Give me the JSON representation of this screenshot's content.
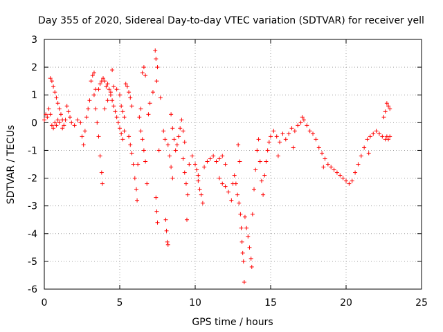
{
  "chart_data": {
    "type": "scatter",
    "title": "Day 355 of 2020, Sidereal Day-to-day VTEC variation (SDTVAR) for receiver yell",
    "xlabel": "GPS time / hours",
    "ylabel": "SDTVAR / TECUs",
    "xlim": [
      0,
      25
    ],
    "ylim": [
      -6,
      3
    ],
    "xticks": [
      0,
      5,
      10,
      15,
      20,
      25
    ],
    "yticks": [
      -6,
      -5,
      -4,
      -3,
      -2,
      -1,
      0,
      1,
      2,
      3
    ],
    "grid": true,
    "marker": "+",
    "series": [
      {
        "name": "SDTVAR",
        "color": "#ff0000",
        "points": [
          [
            0.0,
            0.1
          ],
          [
            0.1,
            0.3
          ],
          [
            0.2,
            0.2
          ],
          [
            0.3,
            0.5
          ],
          [
            0.4,
            0.3
          ],
          [
            0.5,
            -0.1
          ],
          [
            0.6,
            -0.2
          ],
          [
            0.7,
            0.0
          ],
          [
            0.8,
            -0.1
          ],
          [
            0.9,
            0.1
          ],
          [
            0.4,
            1.6
          ],
          [
            0.5,
            1.5
          ],
          [
            0.6,
            1.3
          ],
          [
            0.7,
            1.1
          ],
          [
            0.8,
            0.9
          ],
          [
            0.9,
            0.7
          ],
          [
            1.0,
            0.5
          ],
          [
            1.1,
            0.3
          ],
          [
            1.2,
            0.1
          ],
          [
            1.3,
            -0.1
          ],
          [
            1.0,
            0.0
          ],
          [
            1.2,
            -0.2
          ],
          [
            1.4,
            0.1
          ],
          [
            1.5,
            0.6
          ],
          [
            1.6,
            0.4
          ],
          [
            1.7,
            0.2
          ],
          [
            1.8,
            0.0
          ],
          [
            2.0,
            -0.1
          ],
          [
            2.2,
            0.1
          ],
          [
            2.4,
            0.0
          ],
          [
            2.5,
            -0.5
          ],
          [
            2.6,
            -0.8
          ],
          [
            2.7,
            -0.3
          ],
          [
            2.8,
            0.2
          ],
          [
            2.9,
            0.5
          ],
          [
            3.0,
            0.8
          ],
          [
            3.1,
            1.5
          ],
          [
            3.2,
            1.7
          ],
          [
            3.3,
            1.8
          ],
          [
            3.4,
            1.2
          ],
          [
            3.3,
            1.0
          ],
          [
            3.4,
            0.5
          ],
          [
            3.5,
            0.0
          ],
          [
            3.6,
            -0.5
          ],
          [
            3.7,
            -1.2
          ],
          [
            3.8,
            -1.8
          ],
          [
            3.85,
            -2.2
          ],
          [
            3.6,
            1.2
          ],
          [
            3.7,
            1.4
          ],
          [
            3.8,
            1.5
          ],
          [
            3.9,
            1.6
          ],
          [
            4.0,
            1.5
          ],
          [
            4.1,
            1.3
          ],
          [
            4.2,
            1.4
          ],
          [
            4.3,
            1.2
          ],
          [
            4.4,
            1.0
          ],
          [
            4.5,
            0.8
          ],
          [
            4.6,
            0.6
          ],
          [
            4.7,
            0.4
          ],
          [
            4.8,
            0.2
          ],
          [
            4.0,
            0.5
          ],
          [
            4.2,
            0.8
          ],
          [
            4.4,
            1.1
          ],
          [
            4.5,
            1.9
          ],
          [
            4.6,
            1.3
          ],
          [
            4.8,
            1.2
          ],
          [
            5.0,
            1.0
          ],
          [
            5.1,
            0.6
          ],
          [
            5.2,
            0.4
          ],
          [
            5.3,
            0.2
          ],
          [
            4.9,
            0.0
          ],
          [
            5.0,
            -0.2
          ],
          [
            5.1,
            -0.4
          ],
          [
            5.2,
            -0.6
          ],
          [
            5.3,
            -0.3
          ],
          [
            5.4,
            1.4
          ],
          [
            5.5,
            1.3
          ],
          [
            5.6,
            1.1
          ],
          [
            5.7,
            0.9
          ],
          [
            5.8,
            0.6
          ],
          [
            5.6,
            -0.5
          ],
          [
            5.7,
            -0.8
          ],
          [
            5.8,
            -1.1
          ],
          [
            5.9,
            -1.5
          ],
          [
            6.0,
            -2.0
          ],
          [
            6.1,
            -2.4
          ],
          [
            6.15,
            -2.8
          ],
          [
            6.2,
            -1.5
          ],
          [
            6.3,
            0.2
          ],
          [
            6.4,
            0.5
          ],
          [
            6.5,
            1.8
          ],
          [
            6.6,
            2.0
          ],
          [
            6.7,
            1.7
          ],
          [
            6.4,
            -0.3
          ],
          [
            6.5,
            -0.6
          ],
          [
            6.6,
            -1.0
          ],
          [
            6.7,
            -1.4
          ],
          [
            6.8,
            -2.2
          ],
          [
            6.9,
            0.3
          ],
          [
            7.0,
            0.7
          ],
          [
            7.2,
            1.1
          ],
          [
            7.35,
            2.6
          ],
          [
            7.4,
            2.3
          ],
          [
            7.5,
            2.0
          ],
          [
            7.45,
            1.5
          ],
          [
            7.4,
            -2.7
          ],
          [
            7.45,
            -3.2
          ],
          [
            7.5,
            -3.6
          ],
          [
            7.6,
            -1.0
          ],
          [
            7.7,
            0.9
          ],
          [
            7.9,
            -0.3
          ],
          [
            8.0,
            -0.6
          ],
          [
            8.05,
            -3.5
          ],
          [
            8.1,
            -3.9
          ],
          [
            8.15,
            -4.3
          ],
          [
            8.2,
            -4.4
          ],
          [
            8.2,
            -0.8
          ],
          [
            8.3,
            -1.2
          ],
          [
            8.4,
            -1.6
          ],
          [
            8.5,
            -2.0
          ],
          [
            8.4,
            0.3
          ],
          [
            8.5,
            -0.2
          ],
          [
            8.6,
            -0.6
          ],
          [
            8.7,
            -1.0
          ],
          [
            8.8,
            -0.8
          ],
          [
            8.9,
            -0.5
          ],
          [
            9.0,
            -0.2
          ],
          [
            9.1,
            0.1
          ],
          [
            9.2,
            -0.3
          ],
          [
            9.3,
            -0.7
          ],
          [
            9.2,
            -1.3
          ],
          [
            9.3,
            -1.8
          ],
          [
            9.4,
            -2.2
          ],
          [
            9.5,
            -2.6
          ],
          [
            9.45,
            -3.5
          ],
          [
            9.6,
            -1.5
          ],
          [
            9.8,
            -1.2
          ],
          [
            10.0,
            -1.5
          ],
          [
            10.1,
            -1.7
          ],
          [
            10.2,
            -1.9
          ],
          [
            10.2,
            -2.1
          ],
          [
            10.3,
            -2.4
          ],
          [
            10.4,
            -2.6
          ],
          [
            10.5,
            -2.9
          ],
          [
            10.6,
            -1.6
          ],
          [
            10.8,
            -1.4
          ],
          [
            11.0,
            -1.3
          ],
          [
            11.2,
            -1.2
          ],
          [
            11.4,
            -1.4
          ],
          [
            11.6,
            -1.3
          ],
          [
            11.8,
            -1.2
          ],
          [
            12.0,
            -1.5
          ],
          [
            11.6,
            -2.0
          ],
          [
            11.8,
            -2.2
          ],
          [
            12.0,
            -2.3
          ],
          [
            12.2,
            -2.5
          ],
          [
            12.4,
            -2.8
          ],
          [
            12.5,
            -2.2
          ],
          [
            12.6,
            -1.9
          ],
          [
            12.7,
            -2.2
          ],
          [
            12.8,
            -2.6
          ],
          [
            12.9,
            -2.9
          ],
          [
            13.0,
            -3.3
          ],
          [
            12.85,
            -0.8
          ],
          [
            12.95,
            -1.4
          ],
          [
            13.05,
            -3.8
          ],
          [
            13.1,
            -4.3
          ],
          [
            13.15,
            -4.7
          ],
          [
            13.2,
            -5.0
          ],
          [
            13.25,
            -5.75
          ],
          [
            13.3,
            -3.4
          ],
          [
            13.4,
            -3.8
          ],
          [
            13.5,
            -4.1
          ],
          [
            13.6,
            -4.5
          ],
          [
            13.7,
            -4.9
          ],
          [
            13.75,
            -5.2
          ],
          [
            13.8,
            -3.3
          ],
          [
            13.9,
            -2.4
          ],
          [
            14.0,
            -1.7
          ],
          [
            14.1,
            -1.0
          ],
          [
            14.2,
            -0.6
          ],
          [
            14.3,
            -1.4
          ],
          [
            14.4,
            -2.1
          ],
          [
            14.5,
            -2.6
          ],
          [
            14.6,
            -1.9
          ],
          [
            14.7,
            -1.4
          ],
          [
            14.8,
            -1.0
          ],
          [
            14.9,
            -0.7
          ],
          [
            15.0,
            -0.5
          ],
          [
            15.2,
            -0.3
          ],
          [
            15.4,
            -0.5
          ],
          [
            15.6,
            -0.7
          ],
          [
            15.8,
            -0.4
          ],
          [
            16.0,
            -0.6
          ],
          [
            16.2,
            -0.4
          ],
          [
            16.4,
            -0.2
          ],
          [
            16.6,
            -0.3
          ],
          [
            16.8,
            -0.1
          ],
          [
            17.0,
            0.0
          ],
          [
            17.1,
            0.2
          ],
          [
            17.2,
            0.1
          ],
          [
            17.4,
            -0.1
          ],
          [
            17.6,
            -0.3
          ],
          [
            17.8,
            -0.4
          ],
          [
            18.0,
            -0.6
          ],
          [
            18.2,
            -0.9
          ],
          [
            18.4,
            -1.1
          ],
          [
            18.6,
            -1.3
          ],
          [
            18.8,
            -1.5
          ],
          [
            19.0,
            -1.6
          ],
          [
            19.2,
            -1.7
          ],
          [
            19.4,
            -1.8
          ],
          [
            19.6,
            -1.9
          ],
          [
            19.8,
            -2.0
          ],
          [
            20.0,
            -2.1
          ],
          [
            20.2,
            -2.2
          ],
          [
            20.4,
            -2.1
          ],
          [
            20.6,
            -1.8
          ],
          [
            20.8,
            -1.5
          ],
          [
            21.0,
            -1.2
          ],
          [
            21.2,
            -0.9
          ],
          [
            21.4,
            -0.6
          ],
          [
            21.6,
            -0.5
          ],
          [
            21.8,
            -0.4
          ],
          [
            22.0,
            -0.3
          ],
          [
            22.2,
            -0.4
          ],
          [
            22.4,
            -0.5
          ],
          [
            22.5,
            0.2
          ],
          [
            22.6,
            0.4
          ],
          [
            22.7,
            0.7
          ],
          [
            22.8,
            0.6
          ],
          [
            22.9,
            0.5
          ],
          [
            22.6,
            -0.6
          ],
          [
            22.7,
            -0.5
          ],
          [
            22.8,
            -0.6
          ],
          [
            22.9,
            -0.5
          ],
          [
            15.5,
            -1.2
          ],
          [
            16.5,
            -0.9
          ],
          [
            18.5,
            -1.6
          ],
          [
            21.5,
            -1.1
          ]
        ]
      }
    ]
  }
}
